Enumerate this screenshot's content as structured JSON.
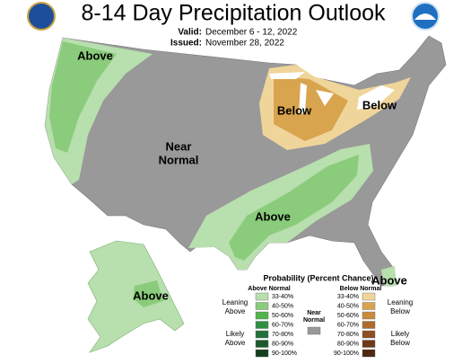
{
  "header": {
    "title": "8-14 Day Precipitation Outlook",
    "valid_label": "Valid:",
    "valid": "December 6 - 12, 2022",
    "issued_label": "Issued:",
    "issued": "November 28, 2022"
  },
  "map_labels": {
    "northwest": "Above",
    "great_lakes": "Below",
    "northeast": "Below",
    "central": [
      "Near",
      "Normal"
    ],
    "south": "Above",
    "alaska": "Above",
    "florida": "Above"
  },
  "legend": {
    "title": "Probability (Percent Chance)",
    "above_heading": "Above Normal",
    "below_heading": "Below Normal",
    "near_heading": [
      "Near",
      "Normal"
    ],
    "leaning_above": [
      "Leaning",
      "Above"
    ],
    "likely_above": [
      "Likely",
      "Above"
    ],
    "leaning_below": [
      "Leaning",
      "Below"
    ],
    "likely_below": [
      "Likely",
      "Below"
    ],
    "above": [
      {
        "range": "33-40%",
        "color": "#b8dfae"
      },
      {
        "range": "40-50%",
        "color": "#8acc7c"
      },
      {
        "range": "50-60%",
        "color": "#55b34e"
      },
      {
        "range": "60-70%",
        "color": "#2f8f45"
      },
      {
        "range": "70-80%",
        "color": "#24703a"
      },
      {
        "range": "80-90%",
        "color": "#1b5a2d"
      },
      {
        "range": "90-100%",
        "color": "#143f1f"
      }
    ],
    "below": [
      {
        "range": "33-40%",
        "color": "#f0d59a"
      },
      {
        "range": "40-50%",
        "color": "#d9a44e"
      },
      {
        "range": "50-60%",
        "color": "#c98a3e"
      },
      {
        "range": "60-70%",
        "color": "#b06a2e"
      },
      {
        "range": "70-80%",
        "color": "#8e4f22"
      },
      {
        "range": "80-90%",
        "color": "#6e3a18"
      },
      {
        "range": "90-100%",
        "color": "#4e2810"
      }
    ],
    "near_color": "#999999"
  }
}
